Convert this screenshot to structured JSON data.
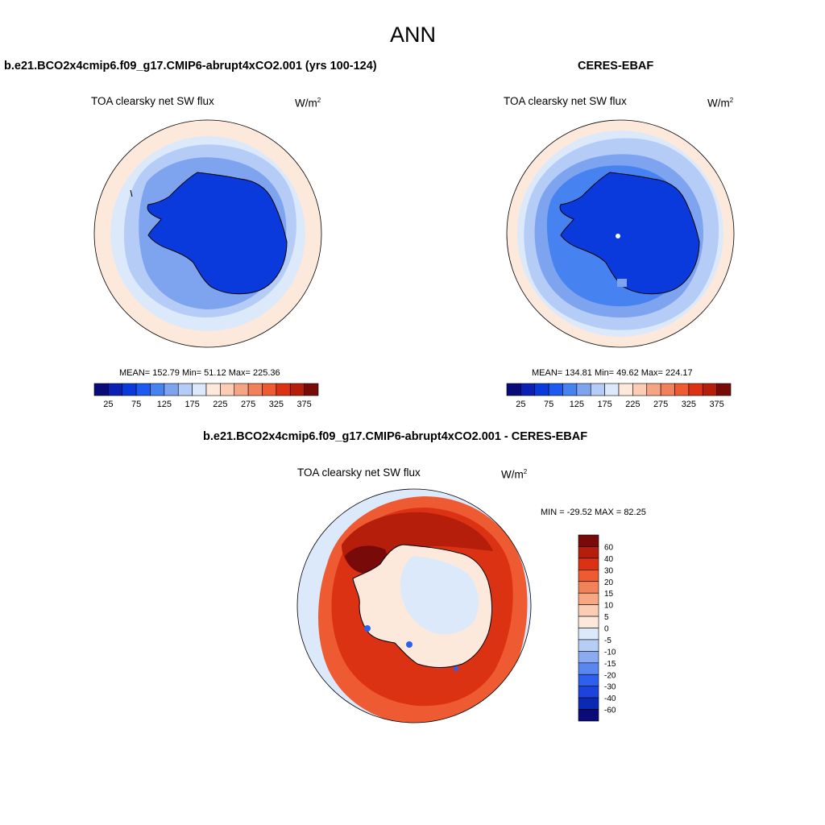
{
  "figure": {
    "season": "ANN"
  },
  "panel_test": {
    "case_title": "b.e21.BCO2x4cmip6.f09_g17.CMIP6-abrupt4xCO2.001 (yrs 100-124)",
    "var_name": "TOA clearsky net SW flux",
    "units_base": "W/m",
    "units_exp": "2",
    "stats": "MEAN= 152.79  Min=  51.12  Max= 225.36"
  },
  "panel_obs": {
    "case_title": "CERES-EBAF",
    "var_name": "TOA clearsky net SW flux",
    "units_base": "W/m",
    "units_exp": "2",
    "stats": "MEAN= 134.81  Min=  49.62  Max= 224.17"
  },
  "panel_diff": {
    "case_title": "b.e21.BCO2x4cmip6.f09_g17.CMIP6-abrupt4xCO2.001 - CERES-EBAF",
    "var_name": "TOA clearsky net SW flux",
    "units_base": "W/m",
    "units_exp": "2",
    "stats": "MIN = -29.52 MAX =  82.25"
  },
  "colorbar_abs": {
    "colors": [
      "#0a0a78",
      "#0a20b4",
      "#0a3adc",
      "#1e5af0",
      "#4682f0",
      "#7ea4f0",
      "#b4ccf6",
      "#dce9fa",
      "#fde9dc",
      "#fbcdb4",
      "#f6a584",
      "#f2805a",
      "#ee5a32",
      "#dc3214",
      "#b41e0a",
      "#780a0a"
    ],
    "tick_labels": [
      "25",
      "75",
      "125",
      "175",
      "225",
      "275",
      "325",
      "375"
    ]
  },
  "colorbar_diff": {
    "colors": [
      "#0a0a78",
      "#0a2ab4",
      "#1c44dc",
      "#2e60f0",
      "#5a86f0",
      "#8aaaf2",
      "#b6cdf6",
      "#dce9fa",
      "#fde9dc",
      "#fbcdb4",
      "#f7a882",
      "#f2825a",
      "#ee5a32",
      "#dc3214",
      "#b41e0a",
      "#780a0a"
    ],
    "tick_labels": [
      "60",
      "40",
      "30",
      "20",
      "15",
      "10",
      "5",
      "0",
      "-5",
      "-10",
      "-15",
      "-20",
      "-30",
      "-40",
      "-60"
    ]
  }
}
